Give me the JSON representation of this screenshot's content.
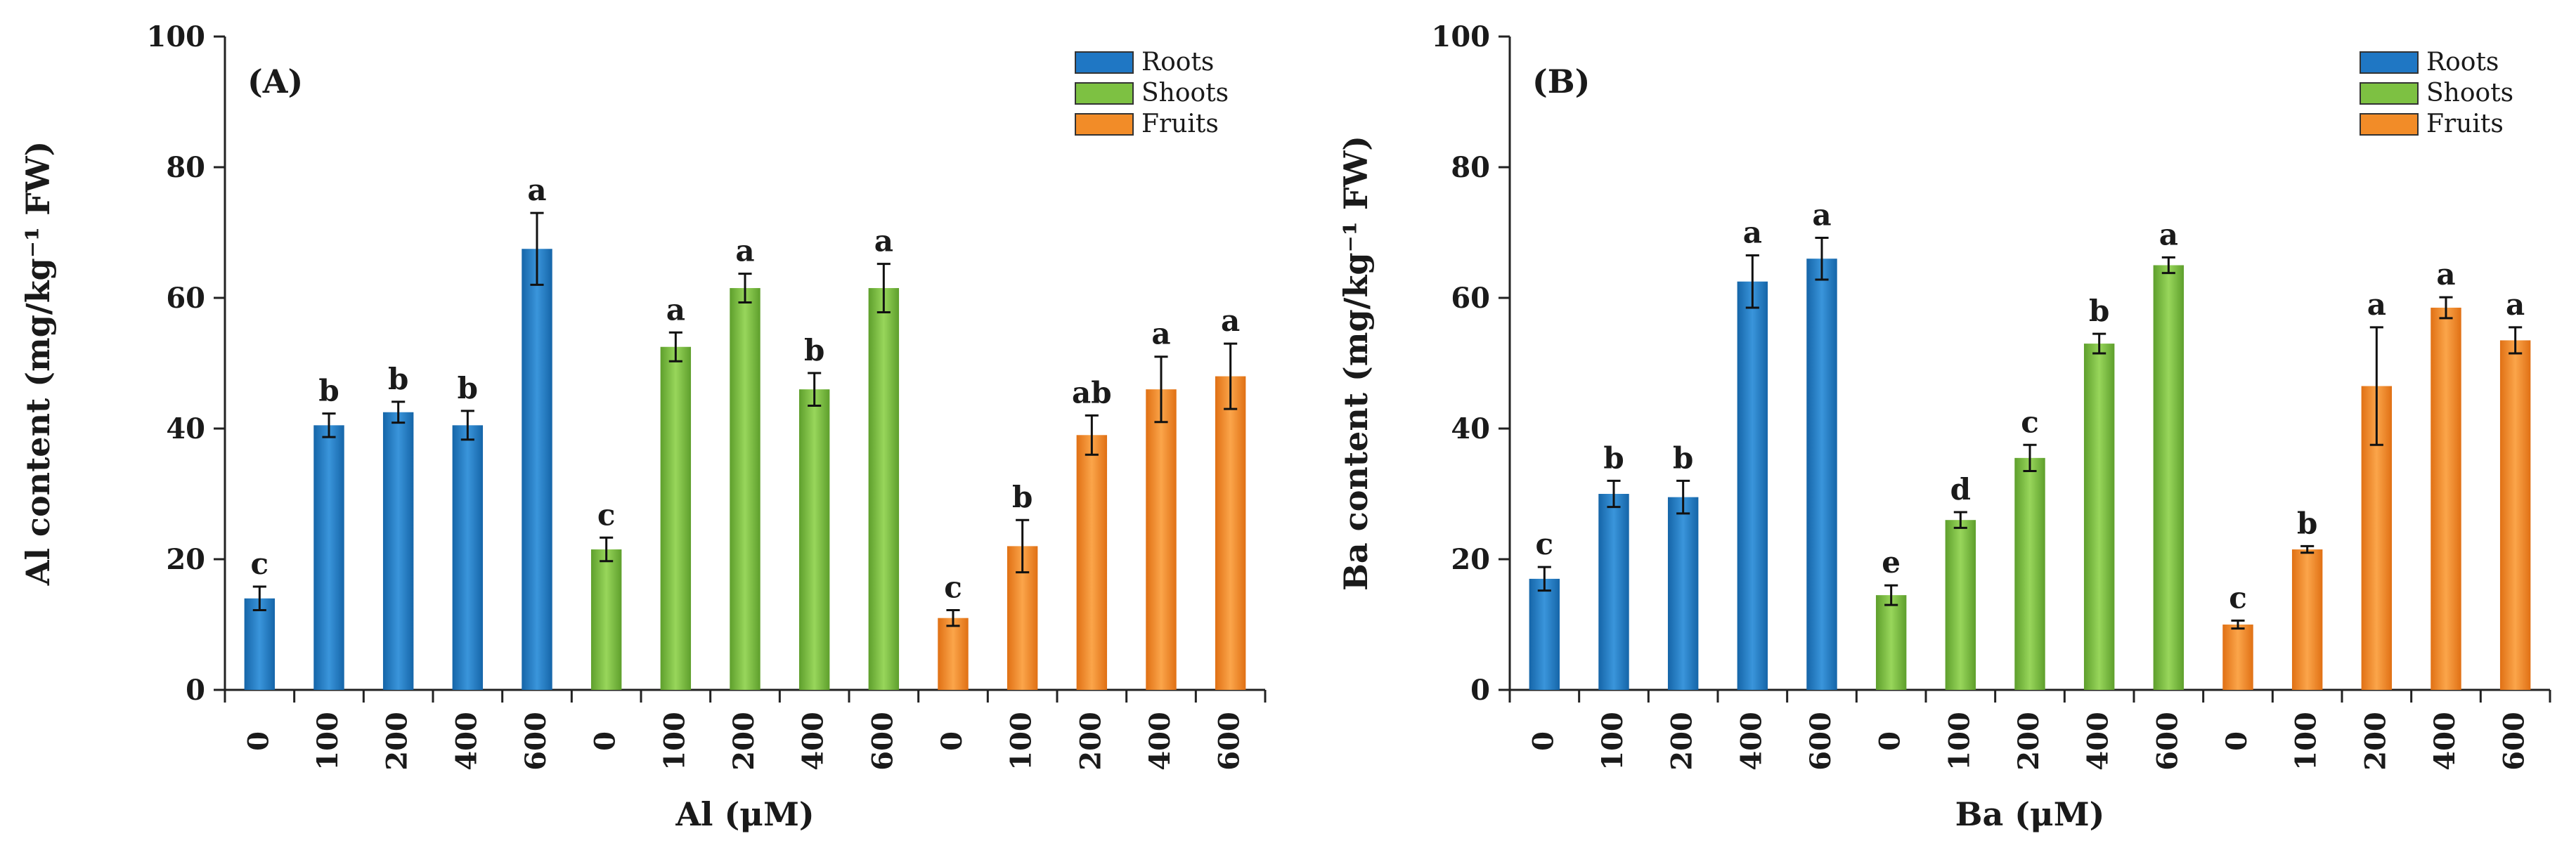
{
  "chart_data": [
    {
      "type": "bar",
      "panel_label": "(A)",
      "xlabel": "Al (μM)",
      "ylabel": "Al content (mg/kg⁻¹ FW)",
      "ylim": [
        0,
        100
      ],
      "yticks": [
        0,
        20,
        40,
        60,
        80,
        100
      ],
      "categories": [
        "0",
        "100",
        "200",
        "400",
        "600"
      ],
      "series": [
        {
          "name": "Roots",
          "color": "#1f77c4",
          "values": [
            14,
            40.5,
            42.5,
            40.5,
            67.5
          ],
          "errors": [
            1.8,
            1.8,
            1.6,
            2.2,
            5.5
          ],
          "letters": [
            "c",
            "b",
            "b",
            "b",
            "a"
          ]
        },
        {
          "name": "Shoots",
          "color": "#7dc142",
          "values": [
            21.5,
            52.5,
            61.5,
            46,
            61.5
          ],
          "errors": [
            1.8,
            2.2,
            2.2,
            2.5,
            3.7
          ],
          "letters": [
            "c",
            "a",
            "a",
            "b",
            "a"
          ]
        },
        {
          "name": "Fruits",
          "color": "#f28c28",
          "values": [
            11,
            22,
            39,
            46,
            48
          ],
          "errors": [
            1.2,
            4,
            3,
            5,
            5
          ],
          "letters": [
            "c",
            "b",
            "ab",
            "a",
            "a"
          ]
        }
      ],
      "legend": [
        "Roots",
        "Shoots",
        "Fruits"
      ]
    },
    {
      "type": "bar",
      "panel_label": "(B)",
      "xlabel": "Ba (μM)",
      "ylabel": "Ba content (mg/kg⁻¹ FW)",
      "ylim": [
        0,
        100
      ],
      "yticks": [
        0,
        20,
        40,
        60,
        80,
        100
      ],
      "categories": [
        "0",
        "100",
        "200",
        "400",
        "600"
      ],
      "series": [
        {
          "name": "Roots",
          "color": "#1f77c4",
          "values": [
            17,
            30,
            29.5,
            62.5,
            66
          ],
          "errors": [
            1.8,
            2,
            2.5,
            4,
            3.2
          ],
          "letters": [
            "c",
            "b",
            "b",
            "a",
            "a"
          ]
        },
        {
          "name": "Shoots",
          "color": "#7dc142",
          "values": [
            14.5,
            26,
            35.5,
            53,
            65
          ],
          "errors": [
            1.5,
            1.2,
            2,
            1.5,
            1.2
          ],
          "letters": [
            "e",
            "d",
            "c",
            "b",
            "a"
          ]
        },
        {
          "name": "Fruits",
          "color": "#f28c28",
          "values": [
            10,
            21.5,
            46.5,
            58.5,
            53.5
          ],
          "errors": [
            0.6,
            0.5,
            9,
            1.6,
            2
          ],
          "letters": [
            "c",
            "b",
            "a",
            "a",
            "a"
          ]
        }
      ],
      "legend": [
        "Roots",
        "Shoots",
        "Fruits"
      ]
    }
  ]
}
